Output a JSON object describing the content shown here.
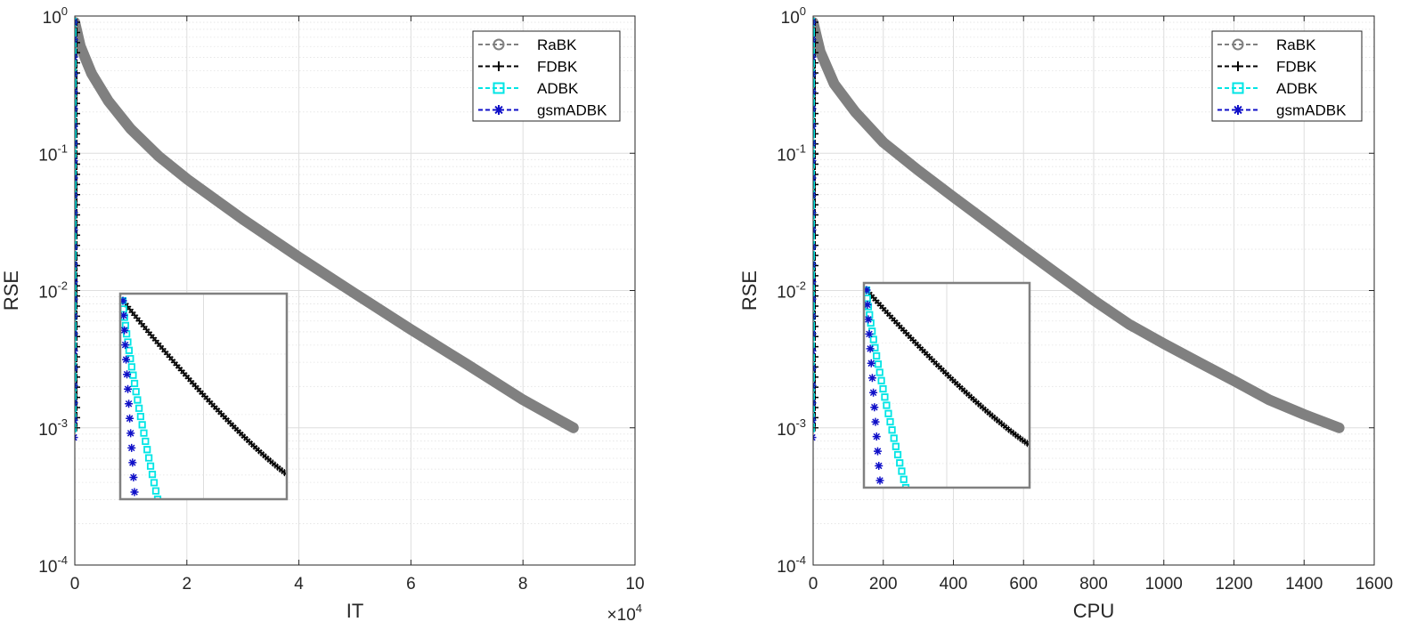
{
  "chart_data": [
    {
      "type": "line",
      "xlabel": "IT",
      "ylabel": "RSE",
      "xscale": "linear",
      "yscale": "log",
      "xlim": [
        0,
        100000
      ],
      "ylim": [
        0.0001,
        1
      ],
      "x_multiplier_label": "×10",
      "x_multiplier_exp": "4",
      "xticks": [
        0,
        20000,
        40000,
        60000,
        80000,
        100000
      ],
      "xtick_labels": [
        "0",
        "2",
        "4",
        "6",
        "8",
        "10"
      ],
      "yticks": [
        1,
        0.1,
        0.01,
        0.001,
        0.0001
      ],
      "ytick_bases": [
        "10",
        "10",
        "10",
        "10",
        "10"
      ],
      "ytick_exps": [
        "0",
        "-1",
        "-2",
        "-3",
        "-4"
      ],
      "grid": true,
      "legend_position": "top-right",
      "legend": [
        "RaBK",
        "FDBK",
        "ADBK",
        "gsmADBK"
      ],
      "series": [
        {
          "name": "RaBK",
          "color": "#808080",
          "marker": "circle",
          "x_end": 89000,
          "y_start": 0.9,
          "y_end": 0.001,
          "x": [
            0,
            1000,
            3000,
            6000,
            10000,
            15000,
            20000,
            30000,
            40000,
            50000,
            60000,
            70000,
            80000,
            89000
          ],
          "y": [
            0.9,
            0.6,
            0.38,
            0.24,
            0.15,
            0.095,
            0.065,
            0.033,
            0.0175,
            0.0095,
            0.0052,
            0.0029,
            0.0016,
            0.001
          ]
        },
        {
          "name": "FDBK",
          "color": "#000000",
          "marker": "plus",
          "x_end": 150,
          "y_start": 0.9,
          "y_end": 0.001
        },
        {
          "name": "ADBK",
          "color": "#00e5e5",
          "marker": "square",
          "x_end": 80,
          "y_start": 0.9,
          "y_end": 0.001
        },
        {
          "name": "gsmADBK",
          "color": "#1010c8",
          "marker": "asterisk",
          "x_end": 40,
          "y_start": 0.9,
          "y_end": 0.00085
        }
      ]
    },
    {
      "type": "line",
      "xlabel": "CPU",
      "ylabel": "RSE",
      "xscale": "linear",
      "yscale": "log",
      "xlim": [
        0,
        1600
      ],
      "ylim": [
        0.0001,
        1
      ],
      "xticks": [
        0,
        200,
        400,
        600,
        800,
        1000,
        1200,
        1400,
        1600
      ],
      "xtick_labels": [
        "0",
        "200",
        "400",
        "600",
        "800",
        "1000",
        "1200",
        "1400",
        "1600"
      ],
      "yticks": [
        1,
        0.1,
        0.01,
        0.001,
        0.0001
      ],
      "ytick_bases": [
        "10",
        "10",
        "10",
        "10",
        "10"
      ],
      "ytick_exps": [
        "0",
        "-1",
        "-2",
        "-3",
        "-4"
      ],
      "grid": true,
      "legend_position": "top-right",
      "legend": [
        "RaBK",
        "FDBK",
        "ADBK",
        "gsmADBK"
      ],
      "series": [
        {
          "name": "RaBK",
          "color": "#808080",
          "marker": "circle",
          "x": [
            0,
            20,
            60,
            120,
            200,
            300,
            400,
            500,
            600,
            700,
            800,
            900,
            1000,
            1100,
            1200,
            1300,
            1400,
            1500
          ],
          "y": [
            0.9,
            0.55,
            0.32,
            0.2,
            0.12,
            0.075,
            0.048,
            0.031,
            0.02,
            0.013,
            0.0085,
            0.0057,
            0.0041,
            0.003,
            0.0022,
            0.0016,
            0.00125,
            0.001
          ]
        },
        {
          "name": "FDBK",
          "color": "#000000",
          "marker": "plus",
          "x_end": 20,
          "y_start": 0.9,
          "y_end": 0.001
        },
        {
          "name": "ADBK",
          "color": "#00e5e5",
          "marker": "square",
          "x_end": 10,
          "y_start": 0.9,
          "y_end": 0.001
        },
        {
          "name": "gsmADBK",
          "color": "#1010c8",
          "marker": "asterisk",
          "x_end": 5,
          "y_start": 0.9,
          "y_end": 0.00085
        }
      ]
    }
  ]
}
